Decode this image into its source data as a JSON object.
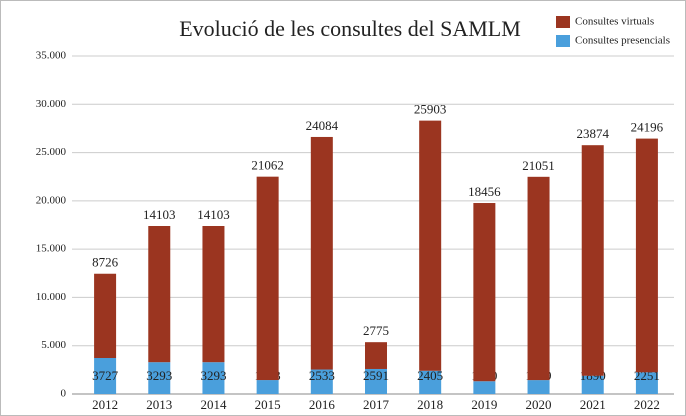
{
  "chart_data": {
    "type": "stacked_bar",
    "title": "Evolució de les consultes del SAMLM",
    "categories": [
      "2012",
      "2013",
      "2014",
      "2015",
      "2016",
      "2017",
      "2018",
      "2019",
      "2020",
      "2021",
      "2022"
    ],
    "series": [
      {
        "name": "Consultes presencials",
        "color": "#4a9fdc",
        "values": [
          3727,
          3293,
          3293,
          1443,
          2533,
          2591,
          2405,
          1320,
          1439,
          1890,
          2251
        ]
      },
      {
        "name": "Consultes virtuals",
        "color": "#9b3520",
        "values": [
          8726,
          14103,
          14103,
          21062,
          24084,
          2775,
          25903,
          18456,
          21051,
          23874,
          24196
        ]
      }
    ],
    "ylim": [
      0,
      35000
    ],
    "yticks": [
      0,
      {
        "value": 5000,
        "label": "5.000"
      },
      {
        "value": 10000,
        "label": "10.000"
      },
      {
        "value": 15000,
        "label": "15.000"
      },
      {
        "value": 20000,
        "label": "20.000"
      },
      {
        "value": 25000,
        "label": "25.000"
      },
      {
        "value": 30000,
        "label": "30.000"
      },
      {
        "value": 35000,
        "label": "35.000"
      }
    ],
    "grid": true,
    "legend": "top-right"
  }
}
